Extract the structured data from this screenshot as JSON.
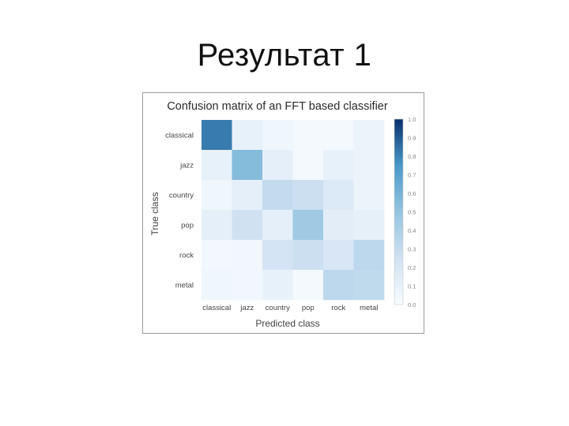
{
  "slide": {
    "title": "Результат 1"
  },
  "chart_data": {
    "type": "heatmap",
    "title": "Confusion matrix of an FFT based classifier",
    "xlabel": "Predicted class",
    "ylabel": "True class",
    "x_categories": [
      "classical",
      "jazz",
      "country",
      "pop",
      "rock",
      "metal"
    ],
    "y_categories": [
      "classical",
      "jazz",
      "country",
      "pop",
      "rock",
      "metal"
    ],
    "values": [
      [
        0.82,
        0.1,
        0.05,
        0.02,
        0.02,
        0.07
      ],
      [
        0.1,
        0.55,
        0.12,
        0.02,
        0.1,
        0.08
      ],
      [
        0.05,
        0.12,
        0.3,
        0.27,
        0.17,
        0.08
      ],
      [
        0.12,
        0.25,
        0.12,
        0.45,
        0.13,
        0.11
      ],
      [
        0.03,
        0.04,
        0.22,
        0.27,
        0.2,
        0.33
      ],
      [
        0.05,
        0.04,
        0.1,
        0.02,
        0.33,
        0.32
      ]
    ],
    "colorbar": {
      "min": 0.0,
      "max": 1.0,
      "ticks": [
        "0.0",
        "0.1",
        "0.2",
        "0.3",
        "0.4",
        "0.5",
        "0.6",
        "0.7",
        "0.8",
        "0.9",
        "1.0"
      ]
    },
    "colormap": {
      "low": "#f7fbff",
      "high": "#08306b"
    }
  }
}
